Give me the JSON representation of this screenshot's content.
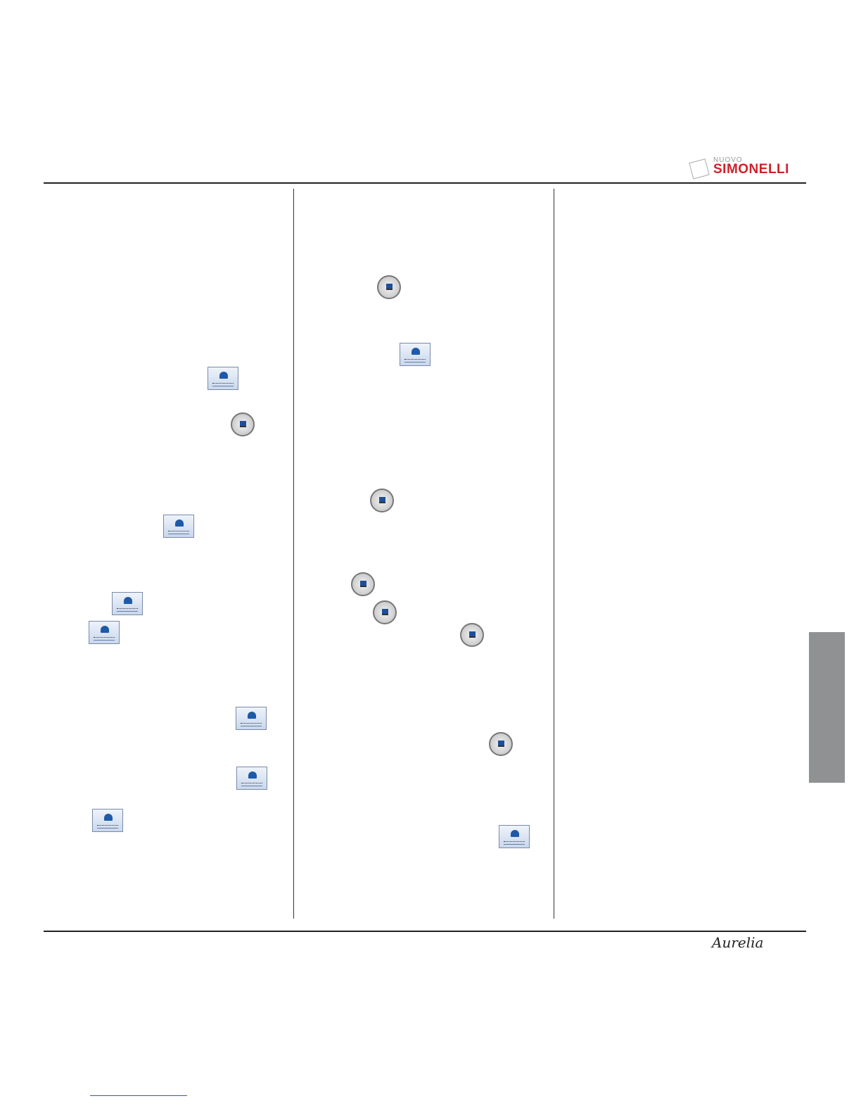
{
  "header": {
    "logo": {
      "small_text": "NUOVO",
      "brand": "SIMONELLI",
      "colors": {
        "brand": "#d0202a"
      }
    }
  },
  "footer": {
    "signature": "Aurelia"
  },
  "icons": {
    "column1": [
      "display-button-icon",
      "cup-button-icon",
      "display-button-icon",
      "display-button-icon",
      "display-button-icon",
      "display-button-icon",
      "display-button-icon",
      "display-button-icon"
    ],
    "column2": [
      "cup-button-icon",
      "display-button-icon",
      "cup-button-icon",
      "cup-button-icon",
      "cup-button-icon",
      "cup-button-icon",
      "cup-button-icon",
      "display-button-icon"
    ]
  },
  "side_tab": {
    "color": "#8f9193"
  }
}
